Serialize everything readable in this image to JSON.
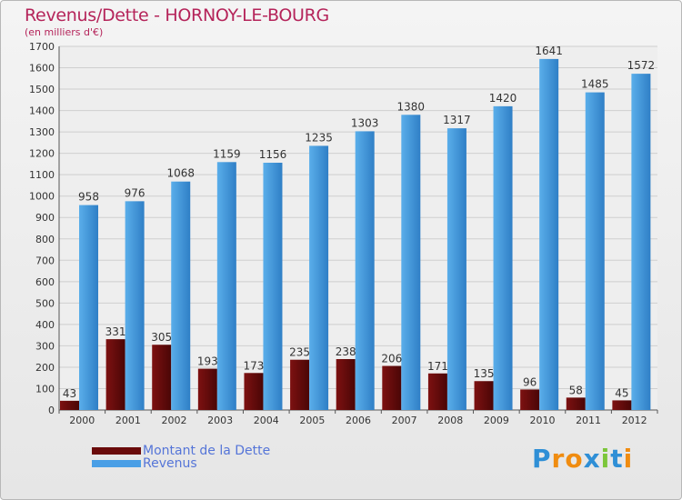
{
  "title": "Revenus/Dette - HORNOY-LE-BOURG",
  "subtitle": "(en milliers d'€)",
  "colors": {
    "debt_top": "#7d1111",
    "debt_bottom": "#4a0606",
    "rev_top": "#5aaeea",
    "rev_bottom": "#2f7fc6",
    "title": "#b5245a",
    "legend_text": "#5575d8"
  },
  "legend": [
    {
      "label": "Montant de la Dette",
      "color": "#6a0b0b"
    },
    {
      "label": "Revenus",
      "color": "#4a9fe6"
    }
  ],
  "logo": {
    "letters": [
      {
        "ch": "P",
        "color": "#2f8fd6"
      },
      {
        "ch": "r",
        "color": "#f08c10"
      },
      {
        "ch": "o",
        "color": "#f08c10"
      },
      {
        "ch": "x",
        "color": "#2f8fd6"
      },
      {
        "ch": "i",
        "color": "#7cc63a"
      },
      {
        "ch": "t",
        "color": "#2f8fd6"
      },
      {
        "ch": "i",
        "color": "#f08c10"
      }
    ]
  },
  "chart_data": {
    "type": "bar",
    "title": "Revenus/Dette - HORNOY-LE-BOURG",
    "ylabel": "(en milliers d'€)",
    "xlabel": "",
    "ylim": [
      0,
      1700
    ],
    "yticks": [
      0,
      100,
      200,
      300,
      400,
      500,
      600,
      700,
      800,
      900,
      1000,
      1100,
      1200,
      1300,
      1400,
      1500,
      1600,
      1700
    ],
    "grid": true,
    "legend_position": "bottom-left",
    "categories": [
      "2000",
      "2001",
      "2002",
      "2003",
      "2004",
      "2005",
      "2006",
      "2007",
      "2008",
      "2009",
      "2010",
      "2011",
      "2012"
    ],
    "series": [
      {
        "name": "Montant de la Dette",
        "values": [
          43,
          331,
          305,
          193,
          173,
          235,
          238,
          206,
          171,
          135,
          96,
          58,
          45
        ]
      },
      {
        "name": "Revenus",
        "values": [
          958,
          976,
          1068,
          1159,
          1156,
          1235,
          1303,
          1380,
          1317,
          1420,
          1641,
          1485,
          1572
        ]
      }
    ]
  }
}
